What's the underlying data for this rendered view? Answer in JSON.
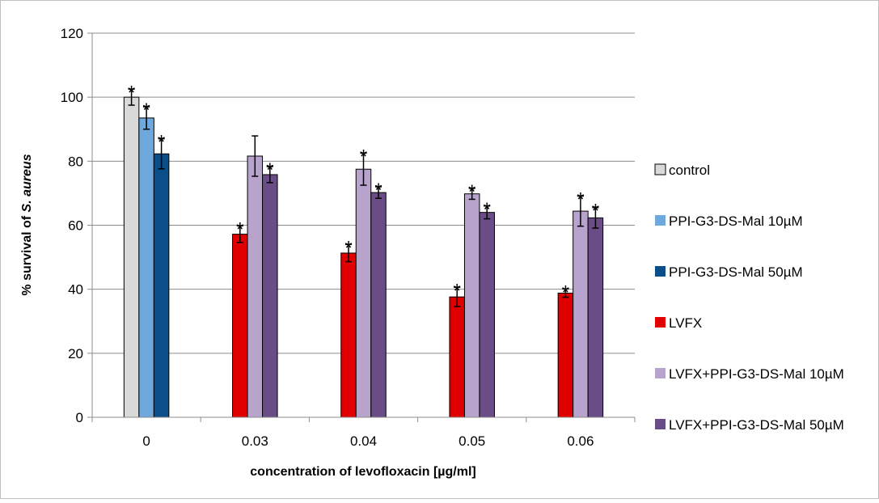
{
  "chart_data": {
    "type": "bar",
    "title": "",
    "xlabel": "concentration of levofloxacin [µg/ml]",
    "ylabel_prefix": "% survival of ",
    "ylabel_italic": "S. aureus",
    "ylim": [
      0,
      120
    ],
    "yticks": [
      "0",
      "20",
      "40",
      "60",
      "80",
      "100",
      "120"
    ],
    "grid": true,
    "legend_position": "right",
    "categories": [
      "0",
      "0.03",
      "0.04",
      "0.05",
      "0.06"
    ],
    "significance_marker": "*",
    "series": [
      {
        "name": "control",
        "color": "#d9d9d9",
        "values": [
          100,
          null,
          null,
          null,
          null
        ],
        "errors": [
          2.5,
          null,
          null,
          null,
          null
        ],
        "significant": [
          true,
          false,
          false,
          false,
          false
        ]
      },
      {
        "name": "PPI-G3-DS-Mal 10µM",
        "color": "#6fa8dc",
        "values": [
          93.5,
          null,
          null,
          null,
          null
        ],
        "errors": [
          3.5,
          null,
          null,
          null,
          null
        ],
        "significant": [
          true,
          false,
          false,
          false,
          false
        ]
      },
      {
        "name": "PPI-G3-DS-Mal 50µM",
        "color": "#0b4f8a",
        "values": [
          82.3,
          null,
          null,
          null,
          null
        ],
        "errors": [
          4.7,
          null,
          null,
          null,
          null
        ],
        "significant": [
          true,
          false,
          false,
          false,
          false
        ]
      },
      {
        "name": "LVFX",
        "color": "#e00000",
        "values": [
          null,
          57.2,
          51.3,
          37.6,
          38.8
        ],
        "errors": [
          null,
          2.6,
          2.7,
          3.0,
          1.3
        ],
        "significant": [
          false,
          true,
          true,
          true,
          true
        ]
      },
      {
        "name": "LVFX+PPI-G3-DS-Mal 10µM",
        "color": "#b7a3cc",
        "values": [
          null,
          81.6,
          77.5,
          69.8,
          64.4
        ],
        "errors": [
          null,
          6.3,
          5.0,
          1.7,
          4.7
        ],
        "significant": [
          false,
          false,
          true,
          true,
          true
        ]
      },
      {
        "name": "LVFX+PPI-G3-DS-Mal 50µM",
        "color": "#6a4c86",
        "values": [
          null,
          75.8,
          70.2,
          64.0,
          62.3
        ],
        "errors": [
          null,
          2.5,
          1.8,
          2.0,
          3.2
        ],
        "significant": [
          false,
          true,
          true,
          true,
          true
        ]
      }
    ]
  }
}
